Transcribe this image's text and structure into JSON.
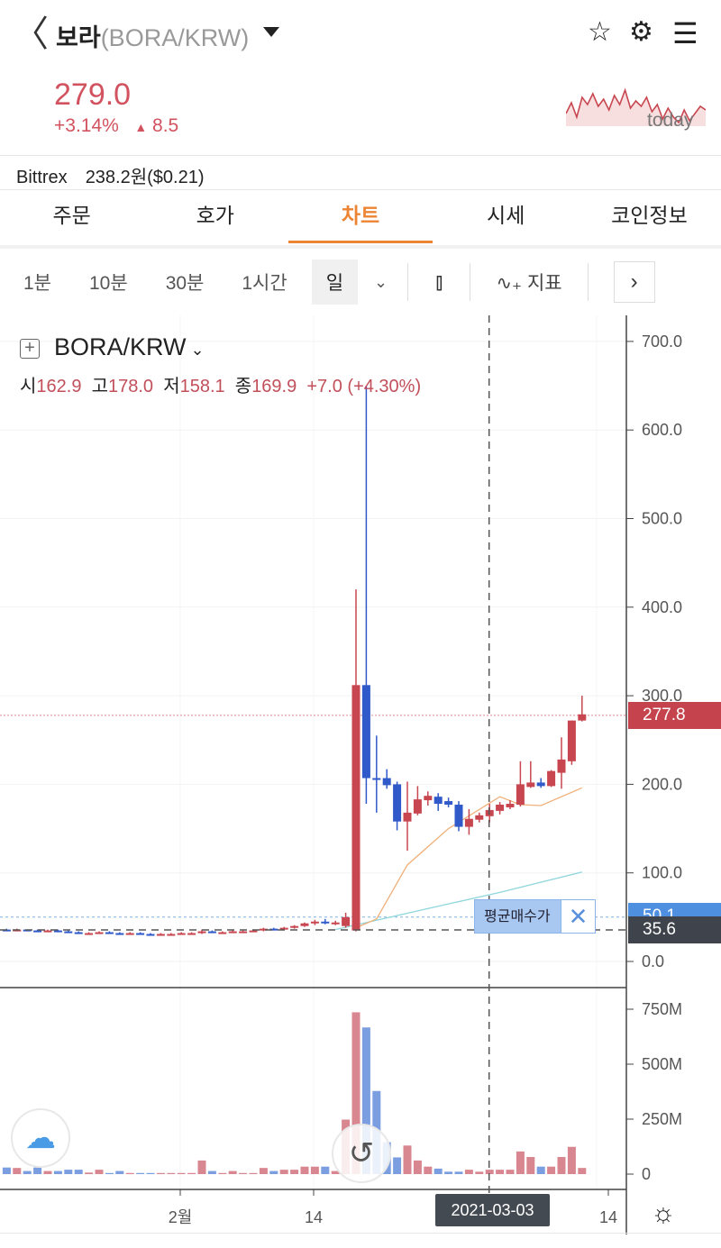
{
  "header": {
    "back_icon": "chevron-left-icon",
    "coin_name": "보라",
    "pair": "(BORA/KRW)",
    "star_icon": "star-icon",
    "settings_icon": "gear-icon",
    "menu_icon": "hamburger-icon"
  },
  "ticker": {
    "price": "279.0",
    "change_pct": "+3.14%",
    "change_abs": "8.5",
    "today_label": "today",
    "color": "#d2525f",
    "spark": [
      30,
      18,
      34,
      12,
      20,
      8,
      22,
      14,
      26,
      10,
      20,
      4,
      24,
      16,
      22,
      12,
      28,
      20,
      36,
      24,
      34,
      40,
      26,
      38,
      30,
      22,
      26
    ]
  },
  "exchange": {
    "name": "Bittrex",
    "price": "238.2원($0.21)"
  },
  "tabs": [
    {
      "label": "주문"
    },
    {
      "label": "호가"
    },
    {
      "label": "차트",
      "active": true
    },
    {
      "label": "시세"
    },
    {
      "label": "코인정보"
    }
  ],
  "intervals": [
    "1분",
    "10분",
    "30분",
    "1시간",
    "일"
  ],
  "indicator_label": "지표",
  "chart_data": {
    "type": "candlestick",
    "symbol": "BORA/KRW",
    "ohlc_legend": {
      "open_label": "시",
      "open": "162.9",
      "high_label": "고",
      "high": "178.0",
      "low_label": "저",
      "low": "158.1",
      "close_label": "종",
      "close": "169.9",
      "change": "+7.0 (+4.30%)"
    },
    "price_ticks": [
      "0.0",
      "100.0",
      "200.0",
      "300.0",
      "400.0",
      "500.0",
      "600.0",
      "700.0"
    ],
    "price_ylim": [
      0,
      700
    ],
    "volume_ticks": [
      "0",
      "250M",
      "500M",
      "750M"
    ],
    "volume_ylim_millions": [
      0,
      750
    ],
    "x_ticks": [
      {
        "label": "2월",
        "index": 17
      },
      {
        "label": "14",
        "index": 30
      },
      {
        "label": "14",
        "index": 58
      }
    ],
    "candles": [
      [
        36,
        37,
        34,
        35
      ],
      [
        35,
        37,
        34,
        36
      ],
      [
        36,
        36,
        34,
        35
      ],
      [
        35,
        36,
        33,
        34
      ],
      [
        34,
        36,
        33,
        35
      ],
      [
        35,
        36,
        33,
        34
      ],
      [
        34,
        35,
        32,
        33
      ],
      [
        33,
        34,
        31,
        32
      ],
      [
        32,
        33,
        31,
        32
      ],
      [
        32,
        34,
        31,
        33
      ],
      [
        33,
        34,
        31,
        32
      ],
      [
        32,
        33,
        30,
        31
      ],
      [
        31,
        33,
        30,
        32
      ],
      [
        32,
        33,
        30,
        31
      ],
      [
        31,
        32,
        29,
        30
      ],
      [
        30,
        32,
        29,
        31
      ],
      [
        31,
        32,
        30,
        31
      ],
      [
        31,
        33,
        30,
        32
      ],
      [
        32,
        33,
        31,
        32
      ],
      [
        32,
        36,
        31,
        34
      ],
      [
        34,
        35,
        32,
        33
      ],
      [
        33,
        34,
        32,
        33
      ],
      [
        33,
        35,
        32,
        34
      ],
      [
        34,
        35,
        33,
        34
      ],
      [
        34,
        36,
        33,
        35
      ],
      [
        35,
        38,
        34,
        37
      ],
      [
        37,
        38,
        35,
        36
      ],
      [
        36,
        39,
        35,
        38
      ],
      [
        38,
        41,
        37,
        40
      ],
      [
        40,
        44,
        39,
        43
      ],
      [
        43,
        47,
        41,
        45
      ],
      [
        45,
        48,
        42,
        43
      ],
      [
        43,
        46,
        41,
        44
      ],
      [
        40,
        55,
        38,
        50
      ],
      [
        35,
        420,
        34,
        312
      ],
      [
        312,
        650,
        178,
        207
      ],
      [
        207,
        255,
        168,
        206
      ],
      [
        207,
        217,
        195,
        199
      ],
      [
        200,
        203,
        148,
        158
      ],
      [
        158,
        203,
        125,
        168
      ],
      [
        167,
        198,
        165,
        183
      ],
      [
        182,
        192,
        176,
        187
      ],
      [
        186,
        190,
        170,
        178
      ],
      [
        181,
        185,
        174,
        177
      ],
      [
        177,
        181,
        147,
        152
      ],
      [
        152,
        172,
        143,
        161
      ],
      [
        160,
        168,
        157,
        165
      ],
      [
        164,
        178,
        157,
        171
      ],
      [
        170,
        180,
        166,
        177
      ],
      [
        174,
        182,
        172,
        178
      ],
      [
        177,
        226,
        175,
        200
      ],
      [
        197,
        226,
        196,
        202
      ],
      [
        202,
        207,
        196,
        198
      ],
      [
        198,
        216,
        197,
        215
      ],
      [
        213,
        253,
        195,
        228
      ],
      [
        226,
        272,
        222,
        272
      ],
      [
        272,
        300,
        271,
        279
      ]
    ],
    "volumes_millions": [
      30,
      28,
      14,
      30,
      14,
      14,
      20,
      20,
      7,
      20,
      5,
      14,
      5,
      5,
      5,
      5,
      5,
      5,
      5,
      62,
      14,
      5,
      14,
      5,
      5,
      28,
      14,
      20,
      20,
      34,
      34,
      34,
      14,
      248,
      736,
      667,
      378,
      145,
      76,
      130,
      62,
      34,
      25,
      11,
      11,
      20,
      11,
      20,
      20,
      20,
      103,
      78,
      34,
      34,
      78,
      124,
      28
    ],
    "ma_short": [
      [
        34,
        38
      ],
      [
        36,
        48
      ],
      [
        39,
        109
      ],
      [
        43,
        150
      ],
      [
        48,
        186
      ],
      [
        50,
        177
      ],
      [
        52,
        176
      ],
      [
        56,
        196
      ]
    ],
    "ma_long": [
      [
        32,
        36
      ],
      [
        43,
        65
      ],
      [
        48,
        78
      ],
      [
        56,
        101
      ]
    ],
    "current_price_tag": "277.8",
    "avg_buy_label": "평균매수가",
    "avg_buy_tag": "50.1",
    "avg_buy_price": 50.1,
    "crosshair_price_tag": "35.6",
    "crosshair_price": 35.6,
    "crosshair_index": 47,
    "crosshair_date": "2021-03-03",
    "up_color": "#c8464f",
    "down_color": "#3059c9",
    "up_vol_color": "#d88790",
    "down_vol_color": "#7b9ee0",
    "ma_short_color": "#f0b07a",
    "ma_long_color": "#8fd6dd"
  }
}
